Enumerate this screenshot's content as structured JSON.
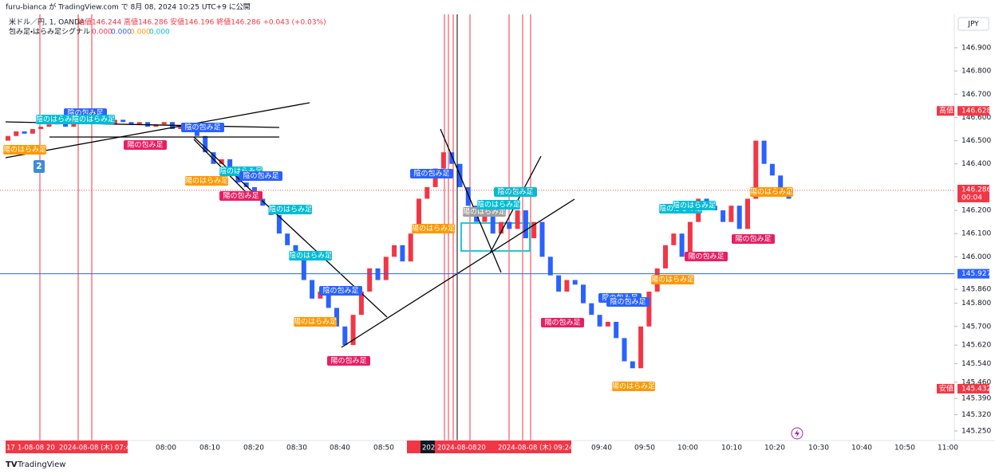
{
  "header": {
    "published": "furu-bianca が TradingView.com で 8月 08, 2024 10:25 UTC+9 に公開",
    "symbol": "米ドル／円, 1, OANDA",
    "ohlc": "始値146.244 高値146.286 安値146.196 終値146.286 +0.043 (+0.03%)",
    "indicator": "包み足・はらみ足シグナル",
    "indicator_values": [
      {
        "text": "0.000",
        "color": "#f23645"
      },
      {
        "text": "0.000",
        "color": "#2962ff"
      },
      {
        "text": "0.000",
        "color": "#ff9800"
      },
      {
        "text": "0.000",
        "color": "#00bcd4"
      }
    ]
  },
  "currency": "JPY",
  "chart_data": {
    "type": "candlestick",
    "up_color": "#f23645",
    "down_color": "#2962ff",
    "open": [
      146.5,
      146.52,
      146.54,
      146.53,
      146.55,
      146.56,
      146.57,
      146.58,
      146.56,
      146.59,
      146.58,
      146.6,
      146.58,
      146.57,
      146.59,
      146.58,
      146.57,
      146.58,
      146.56,
      146.57,
      146.58,
      146.55,
      146.56,
      146.55,
      146.52,
      146.45,
      146.4,
      146.42,
      146.35,
      146.32,
      146.3,
      146.25,
      146.22,
      146.18,
      146.1,
      146.05,
      146.0,
      145.9,
      145.82,
      145.85,
      145.78,
      145.7,
      145.62,
      145.75,
      145.85,
      145.95,
      145.9,
      146.0,
      146.05,
      145.98,
      146.1,
      146.25,
      146.3,
      146.38,
      146.45,
      146.4,
      146.3,
      146.22,
      146.15,
      146.18,
      146.1,
      146.15,
      146.12,
      146.2,
      146.08,
      146.15,
      146.0,
      145.92,
      145.85,
      145.9,
      145.88,
      145.8,
      145.75,
      145.7,
      145.72,
      145.65,
      145.55,
      145.52,
      145.7,
      145.85,
      145.95,
      146.05,
      146.1,
      146.0,
      146.15,
      146.25,
      146.22,
      146.2,
      146.15,
      146.22,
      146.12,
      146.25,
      146.5,
      146.4,
      146.35,
      146.28
    ],
    "close": [
      146.52,
      146.54,
      146.53,
      146.55,
      146.56,
      146.57,
      146.58,
      146.56,
      146.59,
      146.58,
      146.6,
      146.58,
      146.57,
      146.59,
      146.58,
      146.57,
      146.58,
      146.56,
      146.57,
      146.58,
      146.55,
      146.56,
      146.55,
      146.52,
      146.45,
      146.4,
      146.42,
      146.35,
      146.32,
      146.3,
      146.25,
      146.22,
      146.18,
      146.1,
      146.05,
      146.0,
      145.9,
      145.82,
      145.85,
      145.78,
      145.7,
      145.62,
      145.75,
      145.85,
      145.95,
      145.9,
      146.0,
      146.05,
      145.98,
      146.1,
      146.25,
      146.3,
      146.38,
      146.45,
      146.4,
      146.3,
      146.22,
      146.15,
      146.18,
      146.1,
      146.15,
      146.12,
      146.2,
      146.08,
      146.15,
      146.0,
      145.92,
      145.85,
      145.9,
      145.88,
      145.8,
      145.75,
      145.7,
      145.72,
      145.65,
      145.55,
      145.52,
      145.7,
      145.85,
      145.95,
      146.05,
      146.1,
      146.0,
      146.15,
      146.25,
      146.22,
      146.2,
      146.15,
      146.22,
      146.12,
      146.25,
      146.5,
      146.4,
      146.35,
      146.28,
      146.25
    ],
    "ylim": [
      145.226,
      147.037
    ],
    "yticks": [
      {
        "value": 146.9,
        "label": "146.900"
      },
      {
        "value": 146.8,
        "label": "146.800"
      },
      {
        "value": 146.7,
        "label": "146.700"
      },
      {
        "value": 146.6,
        "label": "146.600"
      },
      {
        "value": 146.5,
        "label": "146.500"
      },
      {
        "value": 146.4,
        "label": "146.400"
      },
      {
        "value": 146.2,
        "label": "146.200"
      },
      {
        "value": 146.1,
        "label": "146.100"
      },
      {
        "value": 146.0,
        "label": "146.000"
      },
      {
        "value": 145.86,
        "label": "145.860"
      },
      {
        "value": 145.8,
        "label": "145.800"
      },
      {
        "value": 145.7,
        "label": "145.700"
      },
      {
        "value": 145.62,
        "label": "145.620"
      },
      {
        "value": 145.54,
        "label": "145.540"
      },
      {
        "value": 145.46,
        "label": "145.460"
      },
      {
        "value": 145.39,
        "label": "145.390"
      },
      {
        "value": 145.32,
        "label": "145.320"
      },
      {
        "value": 145.25,
        "label": "145.250"
      }
    ],
    "price_markers": [
      {
        "name": "高値",
        "value": 146.628,
        "color": "#f23645"
      },
      {
        "value": 146.286,
        "countdown": "00:04",
        "color": "#f23645"
      },
      {
        "value": 145.927,
        "color": "#2962ff"
      },
      {
        "name": "安値",
        "value": 145.432,
        "color": "#f23645"
      }
    ],
    "time_labels": [
      "08:00",
      "08:10",
      "08:20",
      "08:30",
      "08:40",
      "08:50",
      "09:40",
      "09:50",
      "10:00",
      "10:10",
      "10:20",
      "10:30",
      "10:40",
      "10:50",
      "11:00"
    ],
    "time_markers": [
      "17",
      "1-08-08",
      "20",
      "2024-08-08 (木) 07:43",
      "202",
      "2024-08-08",
      "20",
      "2024-08-08 (木) 09:24"
    ],
    "signals": [
      {
        "text": "陽のはらみ足",
        "color": "#ff9800"
      },
      {
        "text": "陰の包み足",
        "color": "#2962ff"
      },
      {
        "text": "陰のはらみ足",
        "color": "#00bcd4"
      },
      {
        "text": "陰のはらみ足",
        "color": "#00bcd4"
      },
      {
        "text": "陽の包み足",
        "color": "#e91e63"
      },
      {
        "text": "陰の包み足",
        "color": "#2962ff"
      },
      {
        "text": "陰のはらみ足",
        "color": "#00bcd4"
      },
      {
        "text": "陰の包み足",
        "color": "#2962ff"
      },
      {
        "text": "陽のはらみ足",
        "color": "#ff9800"
      },
      {
        "text": "陽の包み足",
        "color": "#e91e63"
      },
      {
        "text": "陰のはらみ足",
        "color": "#00bcd4"
      },
      {
        "text": "陰のはらみ足",
        "color": "#00bcd4"
      },
      {
        "text": "陰の包み足",
        "color": "#2962ff"
      },
      {
        "text": "陽のはらみ足",
        "color": "#ff9800"
      },
      {
        "text": "陽の包み足",
        "color": "#e91e63"
      },
      {
        "text": "陰の包み足",
        "color": "#2962ff"
      },
      {
        "text": "陽のはらみ足",
        "color": "#ff9800"
      },
      {
        "text": "陽のはらみ足",
        "color": "#9e9e9e"
      },
      {
        "text": "陰のはらみ足",
        "color": "#00bcd4"
      },
      {
        "text": "陰の包み足",
        "color": "#00bcd4"
      },
      {
        "text": "陽の包み足",
        "color": "#e91e63"
      },
      {
        "text": "陰の包み足",
        "color": "#2962ff"
      },
      {
        "text": "陰の包み足",
        "color": "#2962ff"
      },
      {
        "text": "陽のはらみ足",
        "color": "#ff9800"
      },
      {
        "text": "陽のはらみ足",
        "color": "#ff9800"
      },
      {
        "text": "陰のはらみ足",
        "color": "#00bcd4"
      },
      {
        "text": "陰のはらみ足",
        "color": "#00bcd4"
      },
      {
        "text": "陽の包み足",
        "color": "#e91e63"
      },
      {
        "text": "陽の包み足",
        "color": "#e91e63"
      },
      {
        "text": "陽のはらみ足",
        "color": "#ff9800"
      }
    ]
  },
  "footer": {
    "badge": "2",
    "brand": "TradingView"
  }
}
